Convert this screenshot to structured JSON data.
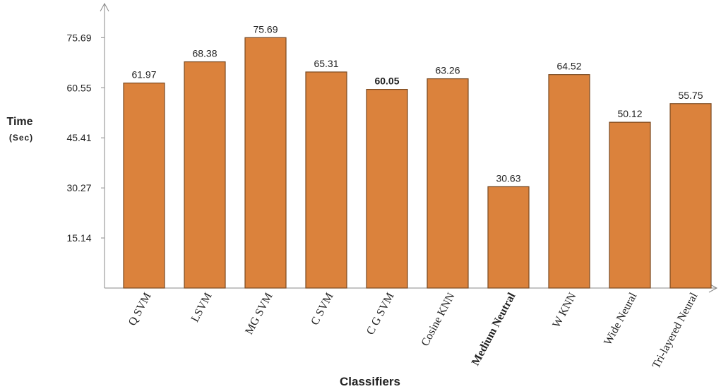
{
  "chart_data": {
    "type": "bar",
    "y_label": "Time",
    "y_unit": "(Sec)",
    "x_label": "Classifiers",
    "categories": [
      "Q SVM",
      "LSVM",
      "MG SVM",
      "C SVM",
      "C G SVM",
      "Cosine KNN",
      "Medium Neutral",
      "W KNN",
      "Wide Neural",
      "Tri-layered Neural"
    ],
    "values": [
      61.97,
      68.38,
      75.69,
      65.31,
      60.05,
      63.26,
      30.63,
      64.52,
      50.12,
      55.75
    ],
    "color": "#db823c",
    "ylim": [
      0,
      86
    ],
    "yticks": [
      15.14,
      30.27,
      45.41,
      60.55,
      75.69
    ],
    "grid": false
  }
}
